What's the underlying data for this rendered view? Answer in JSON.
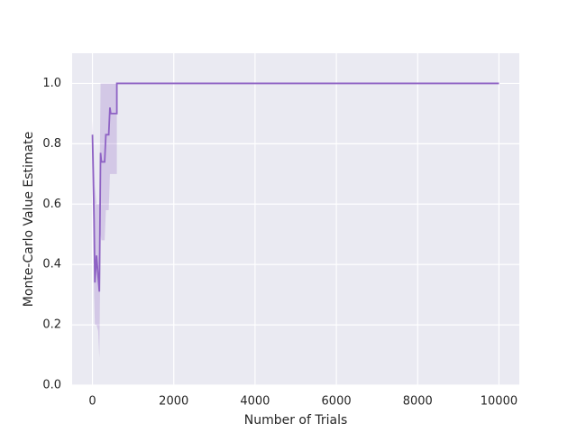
{
  "chart_data": {
    "type": "line",
    "xlabel": "Number of Trials",
    "ylabel": "Monte-Carlo Value Estimate",
    "x": [
      0,
      40,
      60,
      100,
      140,
      170,
      200,
      220,
      300,
      330,
      400,
      430,
      450,
      600,
      600,
      10000
    ],
    "values": [
      0.83,
      0.55,
      0.34,
      0.43,
      0.36,
      0.31,
      0.77,
      0.74,
      0.74,
      0.83,
      0.83,
      0.92,
      0.9,
      0.9,
      1.0,
      1.0
    ],
    "lower": [
      0.7,
      0.3,
      0.2,
      0.2,
      0.18,
      0.09,
      0.5,
      0.48,
      0.48,
      0.58,
      0.58,
      0.7,
      0.7,
      0.7,
      1.0,
      1.0
    ],
    "upper": [
      0.88,
      0.75,
      0.66,
      0.6,
      0.6,
      0.6,
      1.0,
      1.0,
      1.0,
      1.0,
      1.0,
      1.0,
      1.0,
      1.0,
      1.0,
      1.0
    ],
    "color": "#8e62c4",
    "band_color": "#8e62c4",
    "xlim": [
      -500,
      10500
    ],
    "ylim": [
      0,
      1.1
    ],
    "xticks": [
      0,
      2000,
      4000,
      6000,
      8000,
      10000
    ],
    "yticks": [
      {
        "value": 0,
        "label": "0.0"
      },
      {
        "value": 0.2,
        "label": "0.2"
      },
      {
        "value": 0.4,
        "label": "0.4"
      },
      {
        "value": 0.6,
        "label": "0.6"
      },
      {
        "value": 0.8,
        "label": "0.8"
      },
      {
        "value": 1.0,
        "label": "1.0"
      }
    ],
    "grid": true
  }
}
